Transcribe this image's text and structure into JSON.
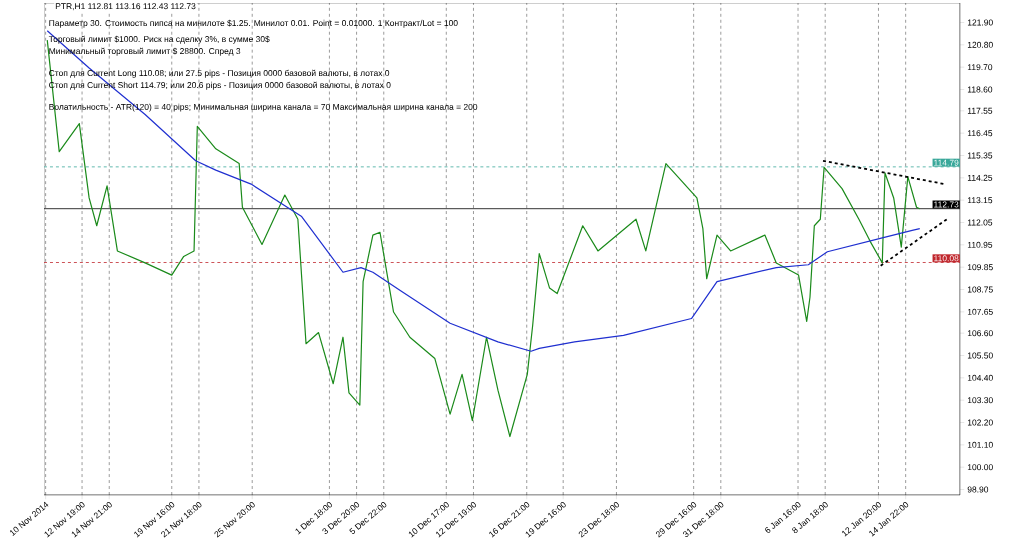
{
  "chart_data": {
    "type": "line",
    "title": "PTR,H1  112.81 113.16 112.43 112.73",
    "annotations": [
      "Параметр 30.  Стоимость пипса на минилоте  $1.25.   Минилот 0.01.  Point = 0.01000.  1 Контракт/Lot = 100",
      "Торговый лимит $1000.  Риск на сделку 3%,  в сумме 30$",
      "Минимальный торговый лимит  $ 28800.   Спред  3",
      "Стоп для Current Long  110.08;  или  27.5 pips -  Позиция 0000 базовой валюты,  в лотах 0",
      "Стоп для Current Short 114.79;  или  20.6 pips -  Позиция 0000 базовой валюты,  в лотах 0",
      "Волатильность - ATR(120) = 40 pips;  Минимальная ширина канала = 70    Максимальная ширина канала = 200"
    ],
    "xlim": [
      "2014-11-09T21:00",
      "2015-01-19T02:00"
    ],
    "xticks": [
      {
        "value": "2014-11-10T00:00",
        "label": "10 Nov 2014"
      },
      {
        "value": "2014-11-12T19:00",
        "label": "12 Nov 19:00"
      },
      {
        "value": "2014-11-14T21:00",
        "label": "14 Nov 21:00"
      },
      {
        "value": "2014-11-19T16:00",
        "label": "19 Nov 16:00"
      },
      {
        "value": "2014-11-21T18:00",
        "label": "21 Nov 18:00"
      },
      {
        "value": "2014-11-25T20:00",
        "label": "25 Nov 20:00"
      },
      {
        "value": "2014-12-01T18:00",
        "label": "1 Dec 18:00"
      },
      {
        "value": "2014-12-03T20:00",
        "label": "3 Dec 20:00"
      },
      {
        "value": "2014-12-05T22:00",
        "label": "5 Dec 22:00"
      },
      {
        "value": "2014-12-10T17:00",
        "label": "10 Dec 17:00"
      },
      {
        "value": "2014-12-12T19:00",
        "label": "12 Dec 19:00"
      },
      {
        "value": "2014-12-16T21:00",
        "label": "16 Dec 21:00"
      },
      {
        "value": "2014-12-19T16:00",
        "label": "19 Dec 16:00"
      },
      {
        "value": "2014-12-23T18:00",
        "label": "23 Dec 18:00"
      },
      {
        "value": "2014-12-29T16:00",
        "label": "29 Dec 16:00"
      },
      {
        "value": "2014-12-31T18:00",
        "label": "31 Dec 18:00"
      },
      {
        "value": "2015-01-06T16:00",
        "label": "6 Jan 16:00"
      },
      {
        "value": "2015-01-08T18:00",
        "label": "8 Jan 18:00"
      },
      {
        "value": "2015-01-12T20:00",
        "label": "12 Jan 20:00"
      },
      {
        "value": "2015-01-14T22:00",
        "label": "14 Jan 22:00"
      }
    ],
    "ylim": [
      98.63,
      122.86
    ],
    "yticks": [
      {
        "value": 121.9,
        "label": "121.90"
      },
      {
        "value": 120.8,
        "label": "120.80"
      },
      {
        "value": 119.7,
        "label": "119.70"
      },
      {
        "value": 118.6,
        "label": "118.60"
      },
      {
        "value": 117.55,
        "label": "117.55"
      },
      {
        "value": 116.45,
        "label": "116.45"
      },
      {
        "value": 115.35,
        "label": "115.35"
      },
      {
        "value": 114.25,
        "label": "114.25"
      },
      {
        "value": 113.15,
        "label": "113.15"
      },
      {
        "value": 112.05,
        "label": "112.05"
      },
      {
        "value": 110.95,
        "label": "110.95"
      },
      {
        "value": 109.85,
        "label": "109.85"
      },
      {
        "value": 108.75,
        "label": "108.75"
      },
      {
        "value": 107.65,
        "label": "107.65"
      },
      {
        "value": 106.6,
        "label": "106.60"
      },
      {
        "value": 105.5,
        "label": "105.50"
      },
      {
        "value": 104.4,
        "label": "104.40"
      },
      {
        "value": 103.3,
        "label": "103.30"
      },
      {
        "value": 102.2,
        "label": "102.20"
      },
      {
        "value": 101.1,
        "label": "101.10"
      },
      {
        "value": 100,
        "label": "100.00"
      },
      {
        "value": 98.9,
        "label": "98.90"
      }
    ],
    "grid": "x",
    "marker": "none",
    "series": [
      {
        "color": "#1a8a1a",
        "line_style": "solid",
        "x": [
          "2014-11-10T03:00",
          "2014-11-11T01:00",
          "2014-11-12T14:00",
          "2014-11-13T08:00",
          "2014-11-13T22:00",
          "2014-11-14T17:00",
          "2014-11-15T12:00",
          "2014-11-17T15:00",
          "2014-11-19T16:00",
          "2014-11-20T14:00",
          "2014-11-21T09:00",
          "2014-11-21T15:00",
          "2014-11-23T01:00",
          "2014-11-24T20:00",
          "2014-11-25T02:00",
          "2014-11-26T14:00",
          "2014-11-28T08:00",
          "2014-11-29T08:00",
          "2014-11-29T23:00",
          "2014-11-30T22:00",
          "2014-12-02T01:00",
          "2014-12-02T19:00",
          "2014-12-03T06:00",
          "2014-12-04T02:00",
          "2014-12-04T08:00",
          "2014-12-05T02:00",
          "2014-12-05T15:00",
          "2014-12-06T16:00",
          "2014-12-07T22:00",
          "2014-12-09T20:00",
          "2014-12-11T00:00",
          "2014-12-11T22:00",
          "2014-12-12T17:00",
          "2014-12-13T19:00",
          "2014-12-14T16:00",
          "2014-12-15T14:00",
          "2014-12-16T22:00",
          "2014-12-17T08:00",
          "2014-12-17T20:00",
          "2014-12-18T15:00",
          "2014-12-19T05:00",
          "2014-12-21T04:00",
          "2014-12-22T08:00",
          "2014-12-25T06:00",
          "2014-12-26T00:00",
          "2014-12-27T13:00",
          "2014-12-29T22:00",
          "2014-12-30T09:00",
          "2014-12-30T16:00",
          "2014-12-31T11:00",
          "2015-01-01T12:00",
          "2015-01-04T03:00",
          "2015-01-05T00:00",
          "2015-01-06T17:00",
          "2015-01-07T08:00",
          "2015-01-07T14:00",
          "2015-01-07T22:00",
          "2015-01-08T09:00",
          "2015-01-08T16:00",
          "2015-01-10T01:00",
          "2015-01-11T08:00",
          "2015-01-12T05:00",
          "2015-01-13T03:00",
          "2015-01-13T08:00",
          "2015-01-14T00:00",
          "2015-01-14T14:00",
          "2015-01-15T02:00",
          "2015-01-15T18:00",
          "2015-01-16T00:00"
        ],
        "values": [
          121.03,
          115.54,
          116.92,
          113.26,
          111.89,
          113.85,
          110.65,
          110.06,
          109.46,
          110.38,
          110.65,
          116.78,
          115.68,
          114.95,
          112.8,
          110.97,
          113.4,
          112.21,
          106.08,
          106.63,
          104.11,
          106.4,
          103.66,
          103.06,
          109.14,
          111.43,
          111.57,
          107.64,
          106.4,
          105.35,
          102.61,
          104.57,
          102.29,
          106.4,
          103.79,
          101.51,
          104.57,
          107.0,
          110.52,
          108.82,
          108.55,
          111.89,
          110.65,
          112.21,
          110.65,
          114.95,
          113.26,
          111.75,
          109.28,
          111.43,
          110.65,
          111.43,
          110.06,
          109.46,
          107.18,
          108.37,
          111.89,
          112.21,
          114.77,
          113.72,
          112.21,
          111.11,
          110.06,
          114.49,
          113.26,
          110.84,
          114.31,
          112.8,
          112.73
        ]
      },
      {
        "color": "#1f2fd0",
        "line_style": "solid",
        "x": [
          "2014-11-10T03:00",
          "2014-11-13T08:00",
          "2014-11-17T15:00",
          "2014-11-21T12:00",
          "2014-11-23T01:00",
          "2014-11-25T18:00",
          "2014-11-29T15:00",
          "2014-12-02T19:00",
          "2014-12-04T04:00",
          "2014-12-05T02:00",
          "2014-12-07T05:00",
          "2014-12-11T00:00",
          "2014-12-14T16:00",
          "2014-12-17T05:00",
          "2014-12-17T20:00",
          "2014-12-20T13:00",
          "2014-12-24T07:00",
          "2014-12-29T12:00",
          "2014-12-31T11:00",
          "2015-01-05T00:00",
          "2015-01-07T11:00",
          "2015-01-08T22:00",
          "2015-01-13T03:00",
          "2015-01-15T10:00",
          "2015-01-16T00:00"
        ],
        "values": [
          121.49,
          119.66,
          117.37,
          115.09,
          114.63,
          113.94,
          112.34,
          109.6,
          109.83,
          109.6,
          108.69,
          107.09,
          106.17,
          105.71,
          105.85,
          106.17,
          106.49,
          107.32,
          109.14,
          109.83,
          109.97,
          110.61,
          111.29,
          111.66,
          111.75
        ]
      },
      {
        "color": "#000000",
        "line_style": "dashed",
        "x": [
          "2015-01-08T14:00",
          "2015-01-17T22:00"
        ],
        "values": [
          115.09,
          113.94
        ]
      },
      {
        "color": "#000000",
        "line_style": "dashed",
        "x": [
          "2015-01-13T00:00",
          "2015-01-18T04:00"
        ],
        "values": [
          109.92,
          112.25
        ]
      }
    ],
    "ref_lines": [
      {
        "axis": "y",
        "value": 114.79,
        "label": "114.79",
        "color": "#3aa89a",
        "line_style": "dashed"
      },
      {
        "axis": "y",
        "value": 110.08,
        "label": "110.08",
        "color": "#c0272d",
        "line_style": "dashed"
      },
      {
        "axis": "y",
        "value": 112.73,
        "label": "112.73",
        "color": "#000000",
        "line_style": "solid"
      }
    ]
  }
}
